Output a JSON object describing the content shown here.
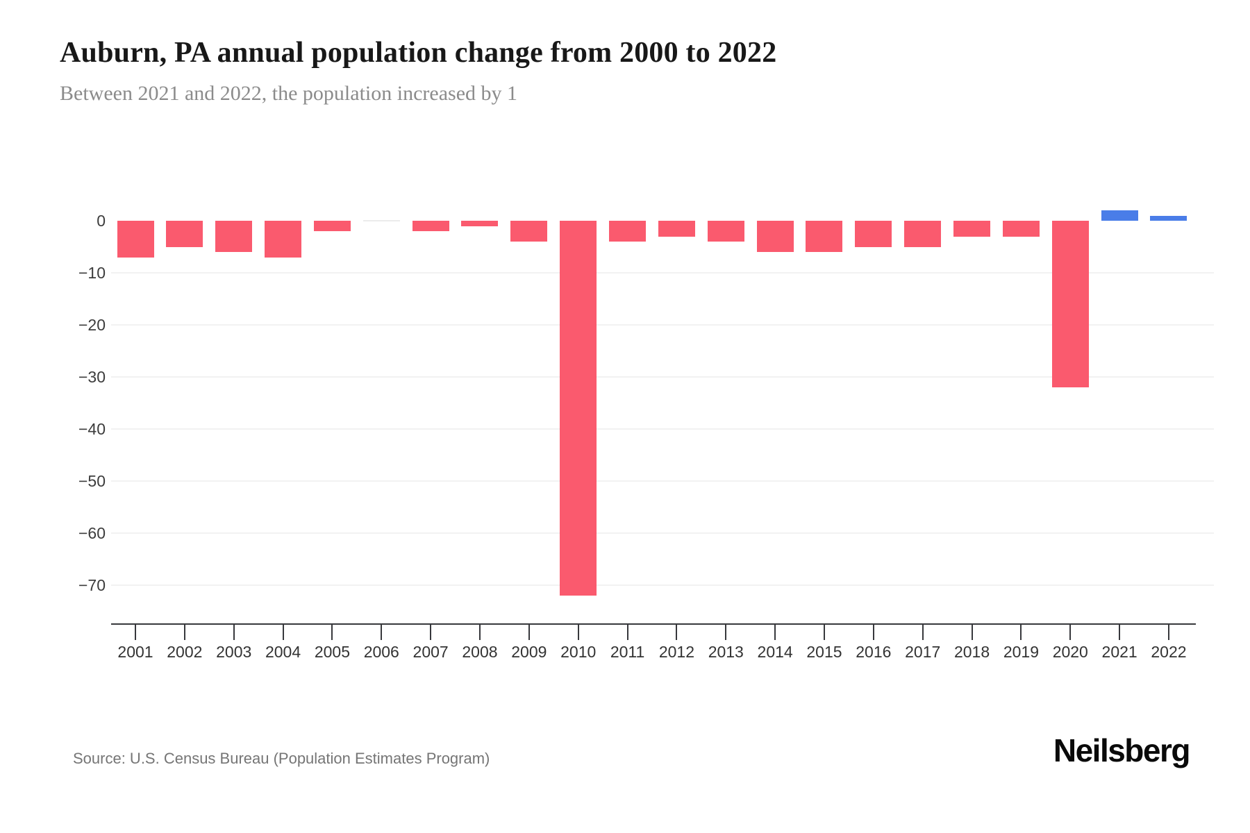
{
  "header": {
    "title": "Auburn, PA annual population change from 2000 to 2022",
    "subtitle": "Between 2021 and 2022, the population increased by 1"
  },
  "chart_data": {
    "type": "bar",
    "title": "Auburn, PA annual population change from 2000 to 2022",
    "subtitle": "Between 2021 and 2022, the population increased by 1",
    "categories": [
      "2001",
      "2002",
      "2003",
      "2004",
      "2005",
      "2006",
      "2007",
      "2008",
      "2009",
      "2010",
      "2011",
      "2012",
      "2013",
      "2014",
      "2015",
      "2016",
      "2017",
      "2018",
      "2019",
      "2020",
      "2021",
      "2022"
    ],
    "values": [
      -7,
      -5,
      -6,
      -7,
      -2,
      0,
      -2,
      -1,
      -4,
      -72,
      -4,
      -3,
      -4,
      -6,
      -6,
      -5,
      -5,
      -3,
      -3,
      -32,
      2,
      1
    ],
    "xlabel": "",
    "ylabel": "",
    "y_ticks": [
      0,
      -10,
      -20,
      -30,
      -40,
      -50,
      -60,
      -70
    ],
    "ylim": [
      -75,
      5
    ],
    "grid": "horizontal-light",
    "legend": "none",
    "colors": {
      "negative_bar": "#fa5a6e",
      "positive_bar": "#4a7de8",
      "zero_bar": "#ececec",
      "gridline": "#f2f2f2",
      "axis": "#37383c"
    }
  },
  "footer": {
    "source": "Source: U.S. Census Bureau (Population Estimates Program)",
    "logo": "Neilsberg"
  }
}
